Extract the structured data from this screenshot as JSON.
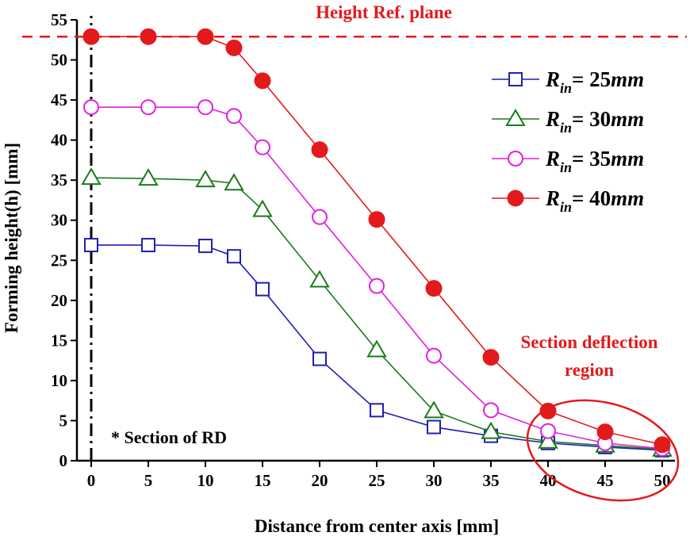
{
  "chart_data": {
    "type": "line",
    "xlabel": "Distance from center axis [mm]",
    "ylabel": "Forming height(h) [mm]",
    "xlim": [
      0,
      50
    ],
    "ylim": [
      0,
      55
    ],
    "xticks": [
      0,
      5,
      10,
      15,
      20,
      25,
      30,
      35,
      40,
      45,
      50
    ],
    "yticks": [
      0,
      5,
      10,
      15,
      20,
      25,
      30,
      35,
      40,
      45,
      50,
      55
    ],
    "grid": false,
    "legend_position": "top-right",
    "x": [
      0,
      5,
      10,
      12.5,
      15,
      20,
      25,
      30,
      35,
      40,
      45,
      50
    ],
    "series": [
      {
        "name": "R_in = 25mm",
        "label_main": "R",
        "label_sub": "in",
        "label_value": "= 25",
        "label_unit": "mm",
        "color": "#1f1fb4",
        "marker": "open-square",
        "values": [
          26.9,
          26.9,
          26.8,
          25.5,
          21.4,
          12.7,
          6.3,
          4.2,
          3.1,
          2.2,
          1.7,
          1.3
        ]
      },
      {
        "name": "R_in = 30mm",
        "label_main": "R",
        "label_sub": "in",
        "label_value": "= 30",
        "label_unit": "mm",
        "color": "#1a7a1a",
        "marker": "open-triangle",
        "values": [
          35.3,
          35.2,
          35.0,
          34.6,
          31.3,
          22.5,
          13.8,
          6.2,
          3.6,
          2.4,
          1.9,
          1.4
        ]
      },
      {
        "name": "R_in = 35mm",
        "label_main": "R",
        "label_sub": "in",
        "label_value": "= 35",
        "label_unit": "mm",
        "color": "#e21fe2",
        "marker": "open-circle",
        "values": [
          44.1,
          44.1,
          44.1,
          43.0,
          39.1,
          30.4,
          21.8,
          13.1,
          6.3,
          3.7,
          2.2,
          1.5
        ]
      },
      {
        "name": "R_in = 40mm",
        "label_main": "R",
        "label_sub": "in",
        "label_value": "= 40",
        "label_unit": "mm",
        "color": "#e31a1c",
        "marker": "filled-circle",
        "values": [
          52.9,
          52.9,
          52.9,
          51.5,
          47.4,
          38.8,
          30.1,
          21.5,
          12.9,
          6.2,
          3.6,
          2.0
        ]
      }
    ],
    "reference_line": {
      "label": "Height Ref. plane",
      "y": 52.9,
      "color": "#e31a1c",
      "style": "dashed"
    },
    "center_axis_line": {
      "x": 0,
      "style": "dash-dot",
      "color": "#000000"
    },
    "annotations": {
      "section_note": "* Section of RD",
      "deflection_label_line1": "Section deflection",
      "deflection_label_line2": "region",
      "deflection_color": "#e31a1c"
    }
  }
}
